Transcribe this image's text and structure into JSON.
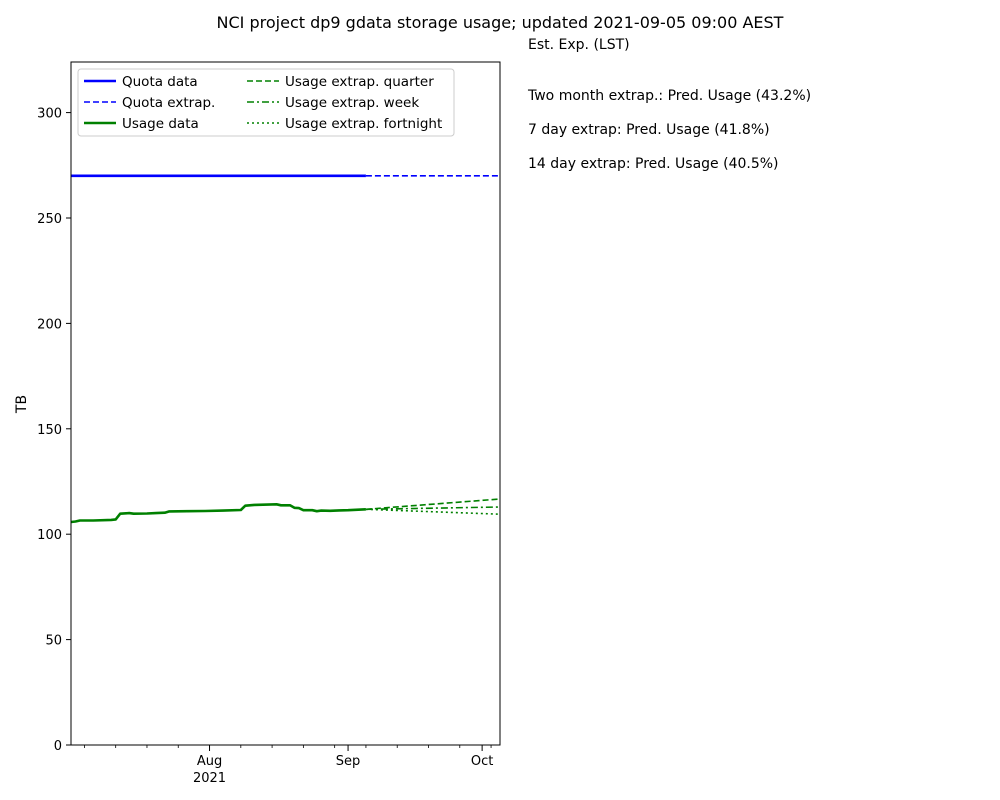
{
  "chart_data": {
    "type": "line",
    "title": "NCI project dp9 gdata storage usage; updated 2021-09-05 09:00 AEST",
    "xlabel": "",
    "ylabel": "TB",
    "xlim": [
      "2021-07-01",
      "2021-10-05"
    ],
    "ylim": [
      0,
      324
    ],
    "grid": false,
    "legend_position": "top-left",
    "x_ticks": [
      {
        "date": "2021-08-01",
        "label": "Aug",
        "sublabel": "2021"
      },
      {
        "date": "2021-09-01",
        "label": "Sep"
      },
      {
        "date": "2021-10-01",
        "label": "Oct"
      }
    ],
    "y_ticks": [
      0,
      50,
      100,
      150,
      200,
      250,
      300
    ],
    "series": [
      {
        "name": "Quota data",
        "color": "#0000ff",
        "style": "solid",
        "points": [
          [
            "2021-07-01",
            270
          ],
          [
            "2021-09-05",
            270
          ]
        ]
      },
      {
        "name": "Quota extrap.",
        "color": "#0000ff",
        "style": "dashed",
        "points": [
          [
            "2021-09-05",
            270
          ],
          [
            "2021-10-05",
            270
          ]
        ]
      },
      {
        "name": "Usage data",
        "color": "#008000",
        "style": "solid",
        "points": [
          [
            "2021-07-01",
            105.8
          ],
          [
            "2021-07-02",
            106.0
          ],
          [
            "2021-07-03",
            106.5
          ],
          [
            "2021-07-06",
            106.5
          ],
          [
            "2021-07-10",
            106.8
          ],
          [
            "2021-07-11",
            107.0
          ],
          [
            "2021-07-12",
            109.7
          ],
          [
            "2021-07-14",
            110.0
          ],
          [
            "2021-07-15",
            109.7
          ],
          [
            "2021-07-18",
            109.8
          ],
          [
            "2021-07-20",
            110.0
          ],
          [
            "2021-07-22",
            110.2
          ],
          [
            "2021-07-23",
            110.8
          ],
          [
            "2021-07-27",
            110.9
          ],
          [
            "2021-07-31",
            111.0
          ],
          [
            "2021-08-04",
            111.2
          ],
          [
            "2021-08-08",
            111.5
          ],
          [
            "2021-08-09",
            113.5
          ],
          [
            "2021-08-11",
            113.9
          ],
          [
            "2021-08-13",
            114.0
          ],
          [
            "2021-08-16",
            114.2
          ],
          [
            "2021-08-17",
            113.7
          ],
          [
            "2021-08-19",
            113.7
          ],
          [
            "2021-08-20",
            112.5
          ],
          [
            "2021-08-21",
            112.4
          ],
          [
            "2021-08-22",
            111.4
          ],
          [
            "2021-08-24",
            111.4
          ],
          [
            "2021-08-25",
            110.9
          ],
          [
            "2021-08-26",
            111.2
          ],
          [
            "2021-08-28",
            111.1
          ],
          [
            "2021-08-30",
            111.3
          ],
          [
            "2021-09-01",
            111.4
          ],
          [
            "2021-09-05",
            111.8
          ]
        ]
      },
      {
        "name": "Usage extrap. quarter",
        "color": "#008000",
        "style": "dashed",
        "points": [
          [
            "2021-09-05",
            111.8
          ],
          [
            "2021-10-05",
            116.7
          ]
        ]
      },
      {
        "name": "Usage extrap. week",
        "color": "#008000",
        "style": "dashdot",
        "points": [
          [
            "2021-09-05",
            111.8
          ],
          [
            "2021-10-05",
            112.9
          ]
        ]
      },
      {
        "name": "Usage extrap. fortnight",
        "color": "#008000",
        "style": "dotted",
        "points": [
          [
            "2021-09-05",
            111.8
          ],
          [
            "2021-10-05",
            109.5
          ]
        ]
      }
    ]
  },
  "side_text": {
    "header": "Est. Exp. (LST)",
    "lines": [
      "Two month extrap.: Pred. Usage (43.2%)",
      "7 day extrap: Pred. Usage (41.8%)",
      "14 day extrap: Pred. Usage (40.5%)"
    ]
  }
}
